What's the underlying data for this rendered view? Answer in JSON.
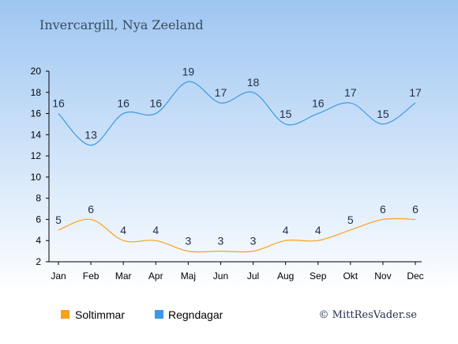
{
  "title": "Invercargill, Nya Zeeland",
  "copyright": "© MittResVader.se",
  "colors": {
    "background_top": "#9ec6f2",
    "background_bottom": "#ffffff",
    "sun": "#f7a21b",
    "rain": "#3d99e6",
    "text": "#1f2d4a"
  },
  "chart_data": {
    "type": "line",
    "categories": [
      "Jan",
      "Feb",
      "Mar",
      "Apr",
      "Maj",
      "Jun",
      "Jul",
      "Aug",
      "Sep",
      "Okt",
      "Nov",
      "Dec"
    ],
    "ylim": [
      2,
      20
    ],
    "yticks": [
      2,
      4,
      6,
      8,
      10,
      12,
      14,
      16,
      18,
      20
    ],
    "grid": false,
    "legend_position": "bottom-left",
    "series": [
      {
        "name": "Soltimmar",
        "color": "#f7a21b",
        "values": [
          5,
          6,
          4,
          4,
          3,
          3,
          3,
          4,
          4,
          5,
          6,
          6
        ]
      },
      {
        "name": "Regndagar",
        "color": "#3d99e6",
        "values": [
          16,
          13,
          16,
          16,
          19,
          17,
          18,
          15,
          16,
          17,
          15,
          17
        ]
      }
    ]
  }
}
